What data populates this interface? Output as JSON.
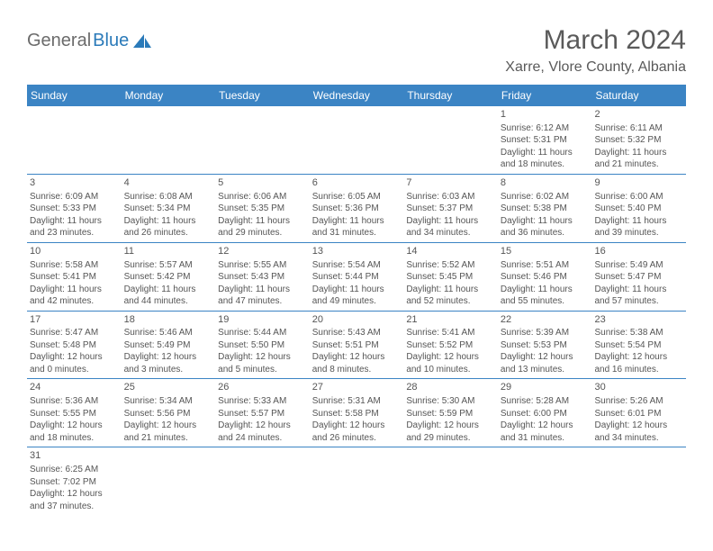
{
  "logo": {
    "general": "General",
    "blue": "Blue",
    "icon_color": "#2a7ab9"
  },
  "title": "March 2024",
  "location": "Xarre, Vlore County, Albania",
  "colors": {
    "header_bg": "#3b84c4",
    "header_text": "#ffffff",
    "cell_text": "#555555",
    "title_text": "#5a5a5a",
    "row_border": "#3b84c4"
  },
  "day_names": [
    "Sunday",
    "Monday",
    "Tuesday",
    "Wednesday",
    "Thursday",
    "Friday",
    "Saturday"
  ],
  "weeks": [
    [
      {
        "num": "",
        "sunrise": "",
        "sunset": "",
        "daylight1": "",
        "daylight2": ""
      },
      {
        "num": "",
        "sunrise": "",
        "sunset": "",
        "daylight1": "",
        "daylight2": ""
      },
      {
        "num": "",
        "sunrise": "",
        "sunset": "",
        "daylight1": "",
        "daylight2": ""
      },
      {
        "num": "",
        "sunrise": "",
        "sunset": "",
        "daylight1": "",
        "daylight2": ""
      },
      {
        "num": "",
        "sunrise": "",
        "sunset": "",
        "daylight1": "",
        "daylight2": ""
      },
      {
        "num": "1",
        "sunrise": "Sunrise: 6:12 AM",
        "sunset": "Sunset: 5:31 PM",
        "daylight1": "Daylight: 11 hours",
        "daylight2": "and 18 minutes."
      },
      {
        "num": "2",
        "sunrise": "Sunrise: 6:11 AM",
        "sunset": "Sunset: 5:32 PM",
        "daylight1": "Daylight: 11 hours",
        "daylight2": "and 21 minutes."
      }
    ],
    [
      {
        "num": "3",
        "sunrise": "Sunrise: 6:09 AM",
        "sunset": "Sunset: 5:33 PM",
        "daylight1": "Daylight: 11 hours",
        "daylight2": "and 23 minutes."
      },
      {
        "num": "4",
        "sunrise": "Sunrise: 6:08 AM",
        "sunset": "Sunset: 5:34 PM",
        "daylight1": "Daylight: 11 hours",
        "daylight2": "and 26 minutes."
      },
      {
        "num": "5",
        "sunrise": "Sunrise: 6:06 AM",
        "sunset": "Sunset: 5:35 PM",
        "daylight1": "Daylight: 11 hours",
        "daylight2": "and 29 minutes."
      },
      {
        "num": "6",
        "sunrise": "Sunrise: 6:05 AM",
        "sunset": "Sunset: 5:36 PM",
        "daylight1": "Daylight: 11 hours",
        "daylight2": "and 31 minutes."
      },
      {
        "num": "7",
        "sunrise": "Sunrise: 6:03 AM",
        "sunset": "Sunset: 5:37 PM",
        "daylight1": "Daylight: 11 hours",
        "daylight2": "and 34 minutes."
      },
      {
        "num": "8",
        "sunrise": "Sunrise: 6:02 AM",
        "sunset": "Sunset: 5:38 PM",
        "daylight1": "Daylight: 11 hours",
        "daylight2": "and 36 minutes."
      },
      {
        "num": "9",
        "sunrise": "Sunrise: 6:00 AM",
        "sunset": "Sunset: 5:40 PM",
        "daylight1": "Daylight: 11 hours",
        "daylight2": "and 39 minutes."
      }
    ],
    [
      {
        "num": "10",
        "sunrise": "Sunrise: 5:58 AM",
        "sunset": "Sunset: 5:41 PM",
        "daylight1": "Daylight: 11 hours",
        "daylight2": "and 42 minutes."
      },
      {
        "num": "11",
        "sunrise": "Sunrise: 5:57 AM",
        "sunset": "Sunset: 5:42 PM",
        "daylight1": "Daylight: 11 hours",
        "daylight2": "and 44 minutes."
      },
      {
        "num": "12",
        "sunrise": "Sunrise: 5:55 AM",
        "sunset": "Sunset: 5:43 PM",
        "daylight1": "Daylight: 11 hours",
        "daylight2": "and 47 minutes."
      },
      {
        "num": "13",
        "sunrise": "Sunrise: 5:54 AM",
        "sunset": "Sunset: 5:44 PM",
        "daylight1": "Daylight: 11 hours",
        "daylight2": "and 49 minutes."
      },
      {
        "num": "14",
        "sunrise": "Sunrise: 5:52 AM",
        "sunset": "Sunset: 5:45 PM",
        "daylight1": "Daylight: 11 hours",
        "daylight2": "and 52 minutes."
      },
      {
        "num": "15",
        "sunrise": "Sunrise: 5:51 AM",
        "sunset": "Sunset: 5:46 PM",
        "daylight1": "Daylight: 11 hours",
        "daylight2": "and 55 minutes."
      },
      {
        "num": "16",
        "sunrise": "Sunrise: 5:49 AM",
        "sunset": "Sunset: 5:47 PM",
        "daylight1": "Daylight: 11 hours",
        "daylight2": "and 57 minutes."
      }
    ],
    [
      {
        "num": "17",
        "sunrise": "Sunrise: 5:47 AM",
        "sunset": "Sunset: 5:48 PM",
        "daylight1": "Daylight: 12 hours",
        "daylight2": "and 0 minutes."
      },
      {
        "num": "18",
        "sunrise": "Sunrise: 5:46 AM",
        "sunset": "Sunset: 5:49 PM",
        "daylight1": "Daylight: 12 hours",
        "daylight2": "and 3 minutes."
      },
      {
        "num": "19",
        "sunrise": "Sunrise: 5:44 AM",
        "sunset": "Sunset: 5:50 PM",
        "daylight1": "Daylight: 12 hours",
        "daylight2": "and 5 minutes."
      },
      {
        "num": "20",
        "sunrise": "Sunrise: 5:43 AM",
        "sunset": "Sunset: 5:51 PM",
        "daylight1": "Daylight: 12 hours",
        "daylight2": "and 8 minutes."
      },
      {
        "num": "21",
        "sunrise": "Sunrise: 5:41 AM",
        "sunset": "Sunset: 5:52 PM",
        "daylight1": "Daylight: 12 hours",
        "daylight2": "and 10 minutes."
      },
      {
        "num": "22",
        "sunrise": "Sunrise: 5:39 AM",
        "sunset": "Sunset: 5:53 PM",
        "daylight1": "Daylight: 12 hours",
        "daylight2": "and 13 minutes."
      },
      {
        "num": "23",
        "sunrise": "Sunrise: 5:38 AM",
        "sunset": "Sunset: 5:54 PM",
        "daylight1": "Daylight: 12 hours",
        "daylight2": "and 16 minutes."
      }
    ],
    [
      {
        "num": "24",
        "sunrise": "Sunrise: 5:36 AM",
        "sunset": "Sunset: 5:55 PM",
        "daylight1": "Daylight: 12 hours",
        "daylight2": "and 18 minutes."
      },
      {
        "num": "25",
        "sunrise": "Sunrise: 5:34 AM",
        "sunset": "Sunset: 5:56 PM",
        "daylight1": "Daylight: 12 hours",
        "daylight2": "and 21 minutes."
      },
      {
        "num": "26",
        "sunrise": "Sunrise: 5:33 AM",
        "sunset": "Sunset: 5:57 PM",
        "daylight1": "Daylight: 12 hours",
        "daylight2": "and 24 minutes."
      },
      {
        "num": "27",
        "sunrise": "Sunrise: 5:31 AM",
        "sunset": "Sunset: 5:58 PM",
        "daylight1": "Daylight: 12 hours",
        "daylight2": "and 26 minutes."
      },
      {
        "num": "28",
        "sunrise": "Sunrise: 5:30 AM",
        "sunset": "Sunset: 5:59 PM",
        "daylight1": "Daylight: 12 hours",
        "daylight2": "and 29 minutes."
      },
      {
        "num": "29",
        "sunrise": "Sunrise: 5:28 AM",
        "sunset": "Sunset: 6:00 PM",
        "daylight1": "Daylight: 12 hours",
        "daylight2": "and 31 minutes."
      },
      {
        "num": "30",
        "sunrise": "Sunrise: 5:26 AM",
        "sunset": "Sunset: 6:01 PM",
        "daylight1": "Daylight: 12 hours",
        "daylight2": "and 34 minutes."
      }
    ],
    [
      {
        "num": "31",
        "sunrise": "Sunrise: 6:25 AM",
        "sunset": "Sunset: 7:02 PM",
        "daylight1": "Daylight: 12 hours",
        "daylight2": "and 37 minutes."
      },
      {
        "num": "",
        "sunrise": "",
        "sunset": "",
        "daylight1": "",
        "daylight2": ""
      },
      {
        "num": "",
        "sunrise": "",
        "sunset": "",
        "daylight1": "",
        "daylight2": ""
      },
      {
        "num": "",
        "sunrise": "",
        "sunset": "",
        "daylight1": "",
        "daylight2": ""
      },
      {
        "num": "",
        "sunrise": "",
        "sunset": "",
        "daylight1": "",
        "daylight2": ""
      },
      {
        "num": "",
        "sunrise": "",
        "sunset": "",
        "daylight1": "",
        "daylight2": ""
      },
      {
        "num": "",
        "sunrise": "",
        "sunset": "",
        "daylight1": "",
        "daylight2": ""
      }
    ]
  ]
}
